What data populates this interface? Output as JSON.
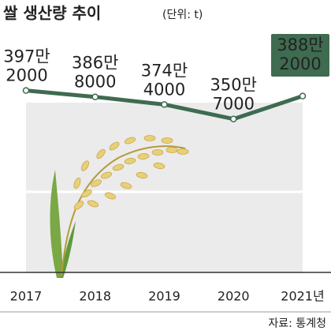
{
  "chart_data": {
    "type": "line",
    "title": "쌀 생산량 추이",
    "subtitle": "(단위: t)",
    "categories": [
      "2017",
      "2018",
      "2019",
      "2020",
      "2021년"
    ],
    "series": [
      {
        "name": "쌀 생산량",
        "color": "#3f6b50",
        "values": [
          3972000,
          3868000,
          3744000,
          3507000,
          3882000
        ],
        "value_labels": [
          [
            "397만",
            "2000"
          ],
          [
            "386만",
            "8000"
          ],
          [
            "374만",
            "4000"
          ],
          [
            "350만",
            "7000"
          ],
          [
            "388만",
            "2000"
          ]
        ]
      }
    ],
    "ylim": [
      1000000,
      4200000
    ],
    "source": "자료: 통계청"
  }
}
